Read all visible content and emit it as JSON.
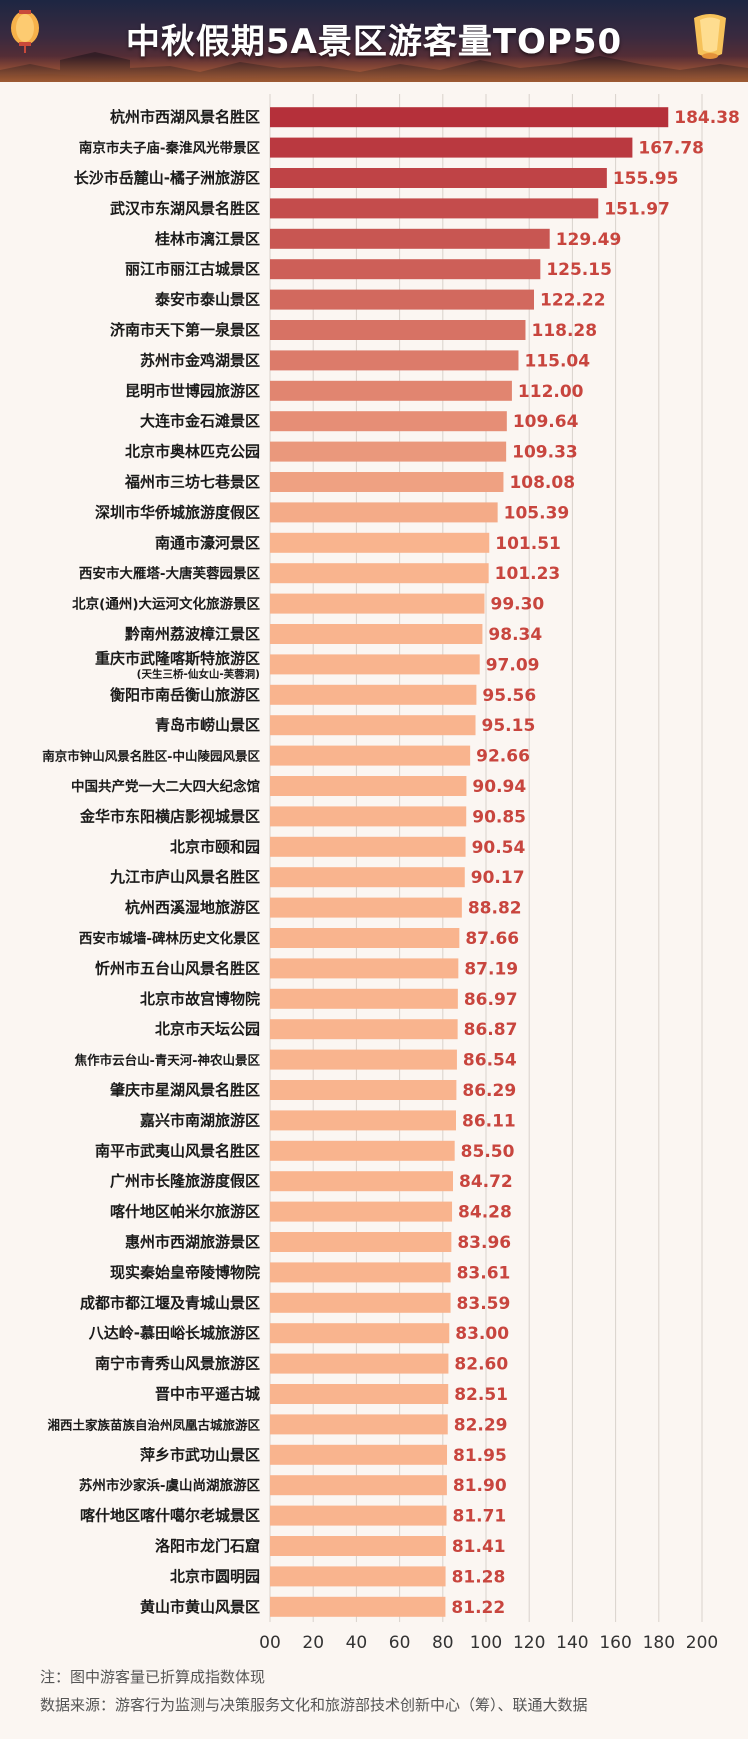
{
  "title": "中秋假期5A景区游客量TOP50",
  "notes": {
    "note": "注：图中游客量已折算成指数体现",
    "source": "数据来源：游客行为监测与决策服务文化和旅游部技术创新中心（筹）、联通大数据"
  },
  "icons": [
    "lantern-icon",
    "lantern-icon"
  ],
  "colors": {
    "bar_top": "#b5303a",
    "bar_bottom": "#f9b48e",
    "value_label": "#c8453e",
    "label_text": "#1a1a1a",
    "grid": "#d9d2cc"
  },
  "chart_data": {
    "type": "bar",
    "orientation": "horizontal",
    "title": "中秋假期5A景区游客量TOP50",
    "xlabel": "",
    "ylabel": "",
    "xlim": [
      0,
      200
    ],
    "xticks": [
      "00",
      "20",
      "40",
      "60",
      "80",
      "100",
      "120",
      "140",
      "160",
      "180",
      "200"
    ],
    "grid": "vertical",
    "categories": [
      "杭州市西湖风景名胜区",
      "南京市夫子庙-秦淮风光带景区",
      "长沙市岳麓山-橘子洲旅游区",
      "武汉市东湖风景名胜区",
      "桂林市漓江景区",
      "丽江市丽江古城景区",
      "泰安市泰山景区",
      "济南市天下第一泉景区",
      "苏州市金鸡湖景区",
      "昆明市世博园旅游区",
      "大连市金石滩景区",
      "北京市奥林匹克公园",
      "福州市三坊七巷景区",
      "深圳市华侨城旅游度假区",
      "南通市濠河景区",
      "西安市大雁塔-大唐芙蓉园景区",
      "北京(通州)大运河文化旅游景区",
      "黔南州荔波樟江景区",
      "重庆市武隆喀斯特旅游区",
      "衡阳市南岳衡山旅游区",
      "青岛市崂山景区",
      "南京市钟山风景名胜区-中山陵园风景区",
      "中国共产党一大二大四大纪念馆",
      "金华市东阳横店影视城景区",
      "北京市颐和园",
      "九江市庐山风景名胜区",
      "杭州西溪湿地旅游区",
      "西安市城墙-碑林历史文化景区",
      "忻州市五台山风景名胜区",
      "北京市故宫博物院",
      "北京市天坛公园",
      "焦作市云台山-青天河-神农山景区",
      "肇庆市星湖风景名胜区",
      "嘉兴市南湖旅游区",
      "南平市武夷山风景名胜区",
      "广州市长隆旅游度假区",
      "喀什地区帕米尔旅游区",
      "惠州市西湖旅游景区",
      "现实秦始皇帝陵博物院",
      "成都市都江堰及青城山景区",
      "八达岭-慕田峪长城旅游区",
      "南宁市青秀山风景旅游区",
      "晋中市平遥古城",
      "湘西土家族苗族自治州凤凰古城旅游区",
      "萍乡市武功山景区",
      "苏州市沙家浜-虞山尚湖旅游区",
      "喀什地区喀什噶尔老城景区",
      "洛阳市龙门石窟",
      "北京市圆明园",
      "黄山市黄山风景区"
    ],
    "sublabels": {
      "18": "(天生三桥-仙女山-芙蓉洞)"
    },
    "values": [
      184.38,
      167.78,
      155.95,
      151.97,
      129.49,
      125.15,
      122.22,
      118.28,
      115.04,
      112.0,
      109.64,
      109.33,
      108.08,
      105.39,
      101.51,
      101.23,
      99.3,
      98.34,
      97.09,
      95.56,
      95.15,
      92.66,
      90.94,
      90.85,
      90.54,
      90.17,
      88.82,
      87.66,
      87.19,
      86.97,
      86.87,
      86.54,
      86.29,
      86.11,
      85.5,
      84.72,
      84.28,
      83.96,
      83.61,
      83.59,
      83.0,
      82.6,
      82.51,
      82.29,
      81.95,
      81.9,
      81.71,
      81.41,
      81.28,
      81.22
    ],
    "value_labels": [
      "184.38",
      "167.78",
      "155.95",
      "151.97",
      "129.49",
      "125.15",
      "122.22",
      "118.28",
      "115.04",
      "112.00",
      "109.64",
      "109.33",
      "108.08",
      "105.39",
      "101.51",
      "101.23",
      "99.30",
      "98.34",
      "97.09",
      "95.56",
      "95.15",
      "92.66",
      "90.94",
      "90.85",
      "90.54",
      "90.17",
      "88.82",
      "87.66",
      "87.19",
      "86.97",
      "86.87",
      "86.54",
      "86.29",
      "86.11",
      "85.50",
      "84.72",
      "84.28",
      "83.96",
      "83.61",
      "83.59",
      "83.00",
      "82.60",
      "82.51",
      "82.29",
      "81.95",
      "81.90",
      "81.71",
      "81.41",
      "81.28",
      "81.22"
    ]
  }
}
